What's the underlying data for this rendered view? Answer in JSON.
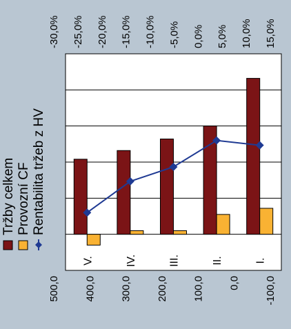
{
  "chart_data": {
    "type": "bar",
    "orientation": "horizontal",
    "categories": [
      "I.",
      "II.",
      "III.",
      "IV.",
      "V."
    ],
    "series": [
      {
        "name": "Tržby celkem",
        "type": "bar",
        "axis": "primary",
        "color": "#7b1416",
        "values": [
          432,
          300,
          264,
          232,
          208
        ]
      },
      {
        "name": "Provozní CF",
        "type": "bar",
        "axis": "primary",
        "color": "#f9b233",
        "values": [
          72,
          55,
          10,
          10,
          -30
        ]
      },
      {
        "name": "Rentabilita tržeb z HV",
        "type": "line",
        "axis": "secondary",
        "color": "#1f3a93",
        "values": [
          -11.0,
          -12.0,
          -6.5,
          -3.5,
          3.0
        ]
      }
    ],
    "primary_axis": {
      "min": -100,
      "max": 500,
      "step": 100,
      "tick_labels": [
        "-100,0",
        "0,0",
        "100,0",
        "200,0",
        "300,0",
        "400,0",
        "500,0"
      ]
    },
    "secondary_axis": {
      "min": -30,
      "max": 15,
      "step": 5,
      "tick_labels": [
        "-30,0%",
        "-25,0%",
        "-20,0%",
        "-15,0%",
        "-10,0%",
        "-5,0%",
        "0,0%",
        "5,0%",
        "10,0%",
        "15,0%"
      ]
    },
    "grid": true,
    "legend_position": "left",
    "plot_background": "#ffffff"
  }
}
